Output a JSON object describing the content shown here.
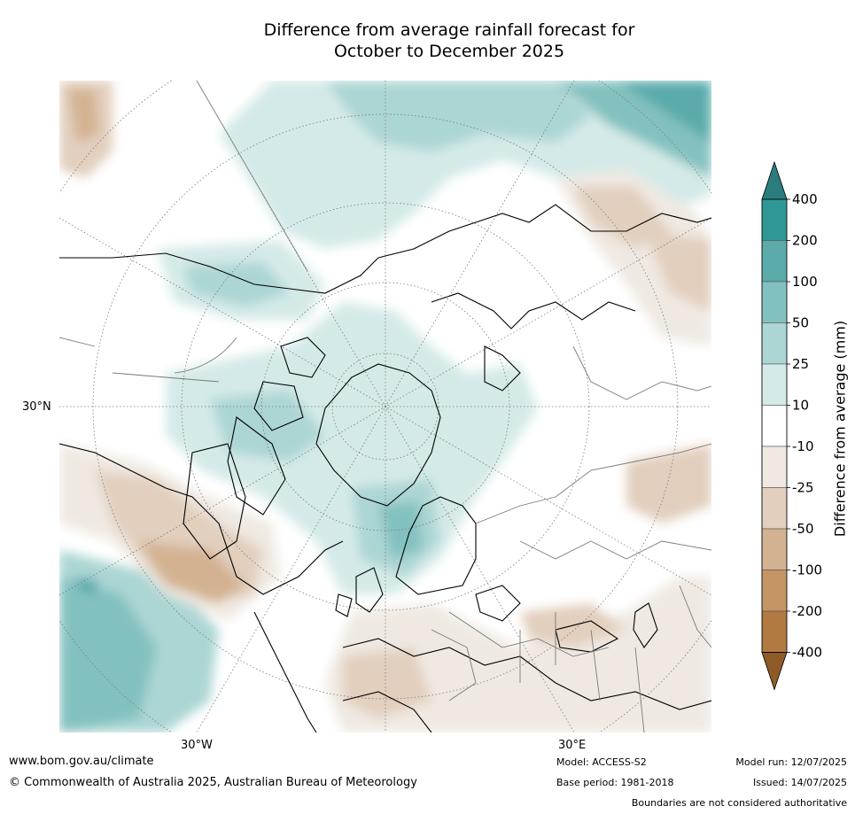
{
  "title": {
    "line1": "Difference from average rainfall forecast for",
    "line2": "October to December 2025"
  },
  "map": {
    "latitude_label": "30°N",
    "longitude_labels": [
      "30°W",
      "30°E"
    ]
  },
  "colorbar": {
    "title": "Difference from average (mm)",
    "ticks": [
      "400",
      "200",
      "100",
      "50",
      "25",
      "10",
      "-10",
      "-25",
      "-50",
      "-100",
      "-200",
      "-400"
    ],
    "colors": [
      "#2a7d7c",
      "#2f9896",
      "#5aabaa",
      "#83c1c0",
      "#acd6d4",
      "#d4eae8",
      "#ffffff",
      "#efe9e2",
      "#e2cfbe",
      "#d3b291",
      "#c49566",
      "#b17a41",
      "#8e5a28"
    ]
  },
  "footer": {
    "website": "www.bom.gov.au/climate",
    "copyright": "© Commonwealth of Australia 2025, Australian Bureau of Meteorology",
    "model": "Model: ACCESS-S2",
    "base_period": "Base period: 1981-2018",
    "model_run": "Model run: 12/07/2025",
    "issued": "Issued: 14/07/2025",
    "disclaimer": "Boundaries are not considered authoritative"
  }
}
